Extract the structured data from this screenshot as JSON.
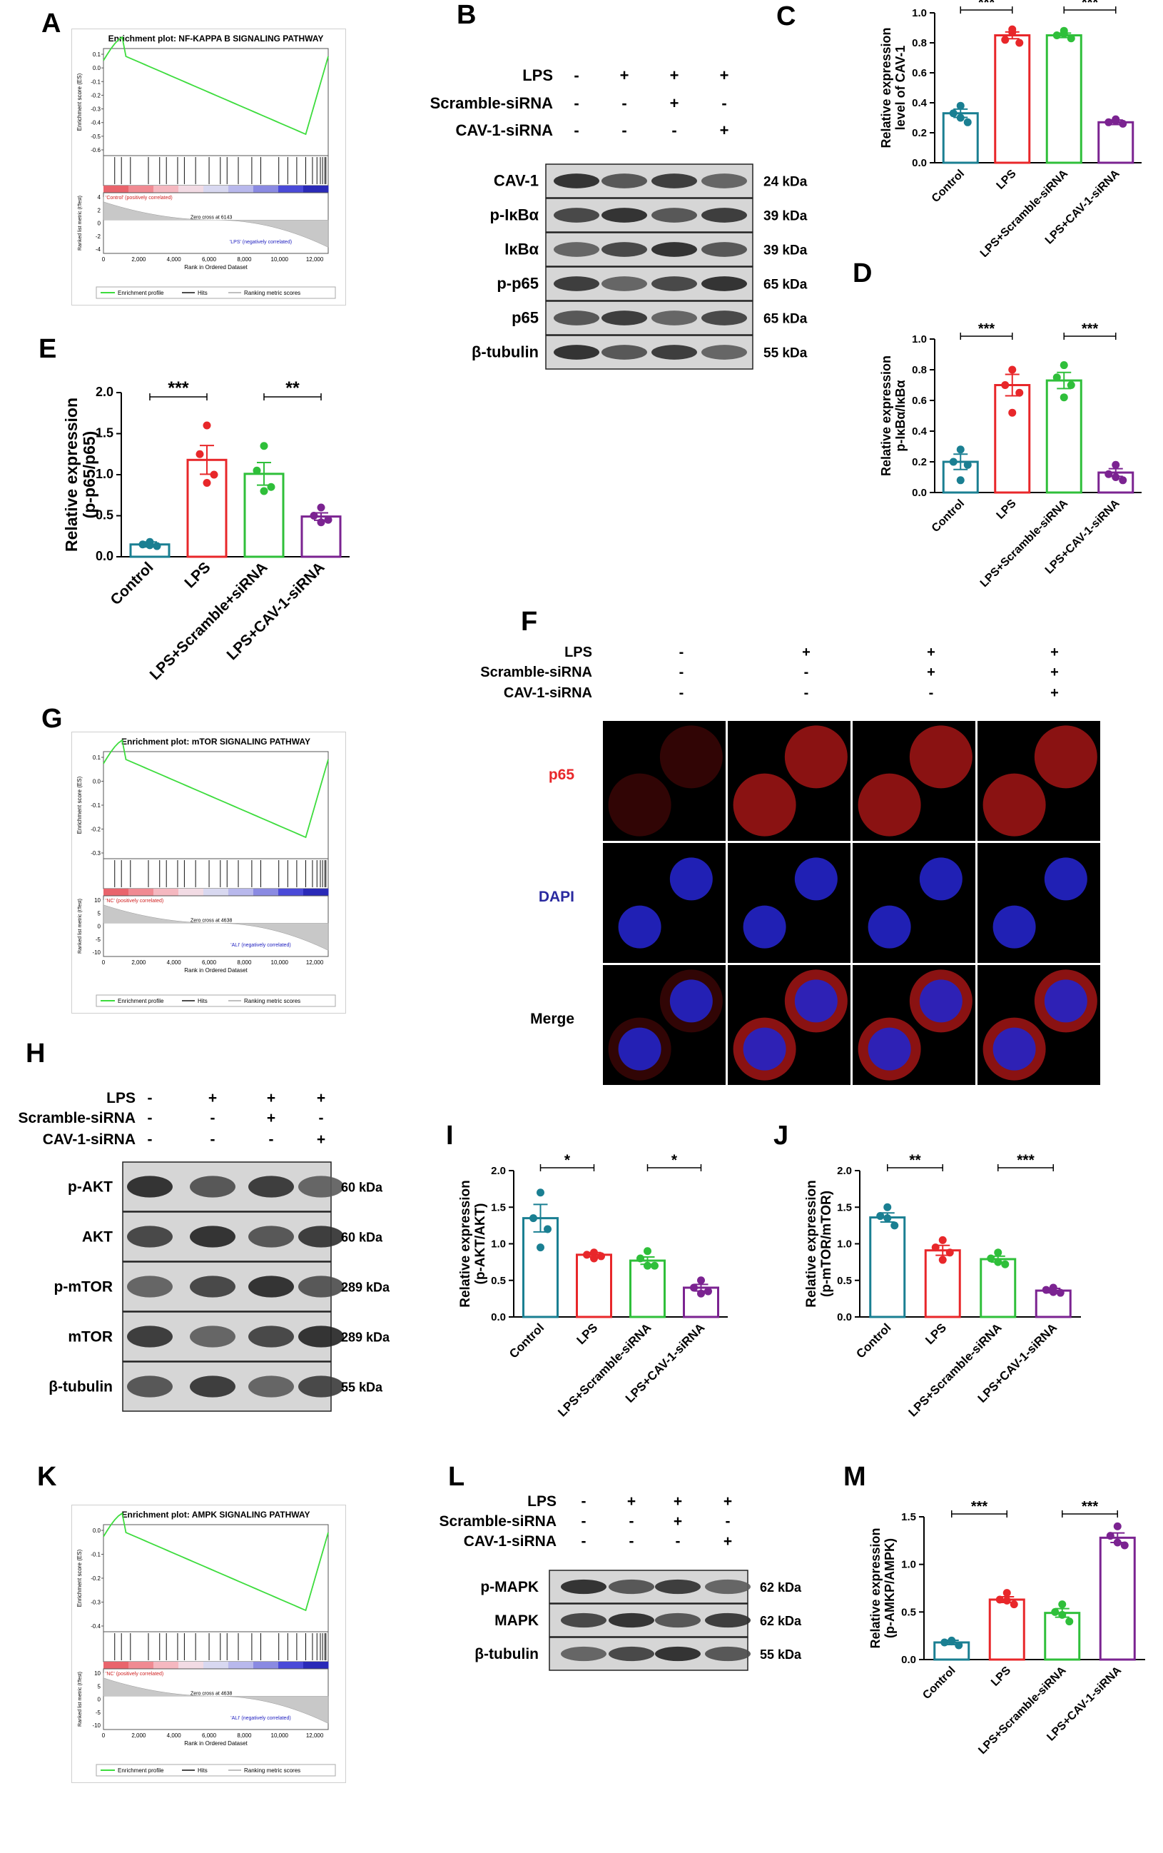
{
  "panel_letters": [
    "A",
    "B",
    "C",
    "D",
    "E",
    "F",
    "G",
    "H",
    "I",
    "J",
    "K",
    "L",
    "M"
  ],
  "conditions": {
    "lps": {
      "label": "LPS",
      "marks": [
        "-",
        "+",
        "+",
        "+"
      ]
    },
    "scramble": {
      "label": "Scramble-siRNA",
      "marks": [
        "-",
        "-",
        "+",
        "-"
      ]
    },
    "cav1": {
      "label": "CAV-1-siRNA",
      "marks": [
        "-",
        "-",
        "-",
        "+"
      ]
    },
    "scramble_f": {
      "label": "Scramble-siRNA",
      "marks": [
        "-",
        "-",
        "+",
        "+"
      ]
    },
    "cav1_f": {
      "label": "CAV-1-siRNA",
      "marks": [
        "-",
        "-",
        "-",
        "+"
      ]
    }
  },
  "group_labels": [
    "Control",
    "LPS",
    "LPS+Scramble-siRNA",
    "LPS+CAV-1-siRNA"
  ],
  "group_labels_E": [
    "Control",
    "LPS",
    "LPS+Scramble+siRNA",
    "LPS+CAV-1-siRNA"
  ],
  "colors": {
    "control": "#1a7f92",
    "lps": "#e8272a",
    "scramble": "#2fbf3a",
    "cav1": "#7b2391",
    "gsea_curve": "#3ddc3d"
  },
  "blots": {
    "B": [
      {
        "name": "CAV-1",
        "size": "24 kDa"
      },
      {
        "name": "p-IκBα",
        "size": "39 kDa"
      },
      {
        "name": "IκBα",
        "size": "39 kDa"
      },
      {
        "name": "p-p65",
        "size": "65 kDa"
      },
      {
        "name": "p65",
        "size": "65 kDa"
      },
      {
        "name": "β-tubulin",
        "size": "55 kDa"
      }
    ],
    "H": [
      {
        "name": "p-AKT",
        "size": "60 kDa"
      },
      {
        "name": "AKT",
        "size": "60 kDa"
      },
      {
        "name": "p-mTOR",
        "size": "289 kDa"
      },
      {
        "name": "mTOR",
        "size": "289 kDa"
      },
      {
        "name": "β-tubulin",
        "size": "55 kDa"
      }
    ],
    "L": [
      {
        "name": "p-MAPK",
        "size": "62 kDa"
      },
      {
        "name": "MAPK",
        "size": "62 kDa"
      },
      {
        "name": "β-tubulin",
        "size": "55 kDa"
      }
    ]
  },
  "if_panel": {
    "rows": [
      {
        "label": "p65",
        "color": "#e8272a"
      },
      {
        "label": "DAPI",
        "color": "#2a2aa0"
      },
      {
        "label": "Merge",
        "color": "#000000"
      }
    ]
  },
  "gsea": [
    {
      "panel": "A",
      "title": "Enrichment plot: NF-KAPPA B SIGNALING PATHWAY",
      "es_ticks": [
        "0.1",
        "0.0",
        "-0.1",
        "-0.2",
        "-0.3",
        "-0.4",
        "-0.5",
        "-0.6"
      ],
      "rank_ticks": [
        "4",
        "2",
        "0",
        "-2",
        "-4"
      ],
      "pos_label": "'Control' (positively correlated)",
      "neg_label": "'LPS' (negatively correlated)",
      "zero_cross": "Zero cross at 6143",
      "x_ticks": [
        "0",
        "2,000",
        "4,000",
        "6,000",
        "8,000",
        "10,000",
        "12,000"
      ],
      "xlabel": "Rank in Ordered Dataset",
      "ylabel_top": "Enrichment score (ES)",
      "ylabel_bottom": "Ranked list metric (tTest)",
      "legend": [
        "Enrichment profile",
        "Hits",
        "Ranking metric scores"
      ]
    },
    {
      "panel": "G",
      "title": "Enrichment plot: mTOR SIGNALING PATHWAY",
      "es_ticks": [
        "0.1",
        "0.0",
        "-0.1",
        "-0.2",
        "-0.3"
      ],
      "rank_ticks": [
        "10",
        "5",
        "0",
        "-5",
        "-10"
      ],
      "pos_label": "'NC' (positively correlated)",
      "neg_label": "'ALI' (negatively correlated)",
      "zero_cross": "Zero cross at 4638",
      "x_ticks": [
        "0",
        "2,000",
        "4,000",
        "6,000",
        "8,000",
        "10,000",
        "12,000"
      ],
      "xlabel": "Rank in Ordered Dataset",
      "ylabel_top": "Enrichment score (ES)",
      "ylabel_bottom": "Ranked list metric (tTest)",
      "legend": [
        "Enrichment profile",
        "Hits",
        "Ranking metric scores"
      ]
    },
    {
      "panel": "K",
      "title": "Enrichment plot: AMPK SIGNALING PATHWAY",
      "es_ticks": [
        "0.0",
        "-0.1",
        "-0.2",
        "-0.3",
        "-0.4"
      ],
      "rank_ticks": [
        "10",
        "5",
        "0",
        "-5",
        "-10"
      ],
      "pos_label": "'NC' (positively correlated)",
      "neg_label": "'ALI' (negatively correlated)",
      "zero_cross": "Zero cross at 4638",
      "x_ticks": [
        "0",
        "2,000",
        "4,000",
        "6,000",
        "8,000",
        "10,000",
        "12,000"
      ],
      "xlabel": "Rank in Ordered Dataset",
      "ylabel_top": "Enrichment score (ES)",
      "ylabel_bottom": "Ranked list metric (tTest)",
      "legend": [
        "Enrichment profile",
        "Hits",
        "Ranking metric scores"
      ]
    }
  ],
  "chart_data": [
    {
      "panel": "C",
      "type": "bar",
      "ylabel": "Relative expression level of CAV-1",
      "ylim": [
        0,
        1.0
      ],
      "yticks": [
        "0.0",
        "0.2",
        "0.4",
        "0.6",
        "0.8",
        "1.0"
      ],
      "values": [
        0.33,
        0.85,
        0.85,
        0.27
      ],
      "points": [
        [
          0.38,
          0.33,
          0.27,
          0.3
        ],
        [
          0.89,
          0.82,
          0.8,
          0.87
        ],
        [
          0.88,
          0.85,
          0.83,
          0.86
        ],
        [
          0.29,
          0.27,
          0.26,
          0.28
        ]
      ],
      "significance": [
        {
          "from": 0,
          "to": 1,
          "label": "***"
        },
        {
          "from": 2,
          "to": 3,
          "label": "***"
        }
      ]
    },
    {
      "panel": "D",
      "type": "bar",
      "ylabel": "Relative expression p-IκBα/IκBα",
      "ylim": [
        0,
        1.0
      ],
      "yticks": [
        "0.0",
        "0.2",
        "0.4",
        "0.6",
        "0.8",
        "1.0"
      ],
      "values": [
        0.2,
        0.7,
        0.73,
        0.13
      ],
      "points": [
        [
          0.28,
          0.2,
          0.18,
          0.08
        ],
        [
          0.8,
          0.7,
          0.65,
          0.52
        ],
        [
          0.83,
          0.75,
          0.7,
          0.62
        ],
        [
          0.18,
          0.12,
          0.08,
          0.1
        ]
      ],
      "significance": [
        {
          "from": 0,
          "to": 1,
          "label": "***"
        },
        {
          "from": 2,
          "to": 3,
          "label": "***"
        }
      ]
    },
    {
      "panel": "E",
      "type": "bar",
      "ylabel": "Relative expression (p-p65/p65)",
      "ylim": [
        0,
        2.0
      ],
      "yticks": [
        "0.0",
        "0.5",
        "1.0",
        "1.5",
        "2.0"
      ],
      "values": [
        0.15,
        1.18,
        1.01,
        0.49
      ],
      "points": [
        [
          0.18,
          0.15,
          0.13,
          0.14
        ],
        [
          1.6,
          1.25,
          1.0,
          0.9
        ],
        [
          1.35,
          1.05,
          0.85,
          0.8
        ],
        [
          0.6,
          0.5,
          0.45,
          0.42
        ]
      ],
      "significance": [
        {
          "from": 0,
          "to": 1,
          "label": "***"
        },
        {
          "from": 2,
          "to": 3,
          "label": "**"
        }
      ]
    },
    {
      "panel": "I",
      "type": "bar",
      "ylabel": "Relative expression (p-AKT/AKT)",
      "ylim": [
        0,
        2.0
      ],
      "yticks": [
        "0.0",
        "0.5",
        "1.0",
        "1.5",
        "2.0"
      ],
      "values": [
        1.35,
        0.85,
        0.77,
        0.4
      ],
      "points": [
        [
          1.7,
          1.35,
          1.2,
          0.95
        ],
        [
          0.88,
          0.85,
          0.83,
          0.8
        ],
        [
          0.9,
          0.8,
          0.7,
          0.7
        ],
        [
          0.5,
          0.4,
          0.35,
          0.32
        ]
      ],
      "significance": [
        {
          "from": 0,
          "to": 1,
          "label": "*"
        },
        {
          "from": 2,
          "to": 3,
          "label": "*"
        }
      ]
    },
    {
      "panel": "J",
      "type": "bar",
      "ylabel": "Relative expression (p-mTOR/mTOR)",
      "ylim": [
        0,
        2.0
      ],
      "yticks": [
        "0.0",
        "0.5",
        "1.0",
        "1.5",
        "2.0"
      ],
      "values": [
        1.36,
        0.91,
        0.79,
        0.36
      ],
      "points": [
        [
          1.5,
          1.38,
          1.25,
          1.35
        ],
        [
          1.05,
          0.95,
          0.88,
          0.78
        ],
        [
          0.88,
          0.8,
          0.72,
          0.75
        ],
        [
          0.4,
          0.37,
          0.33,
          0.34
        ]
      ],
      "significance": [
        {
          "from": 0,
          "to": 1,
          "label": "**"
        },
        {
          "from": 2,
          "to": 3,
          "label": "***"
        }
      ]
    },
    {
      "panel": "M",
      "type": "bar",
      "ylabel": "Relative expression (p-AMKP/AMPK)",
      "ylim": [
        0,
        1.5
      ],
      "yticks": [
        "0.0",
        "0.5",
        "1.0",
        "1.5"
      ],
      "values": [
        0.18,
        0.63,
        0.49,
        1.28
      ],
      "points": [
        [
          0.2,
          0.18,
          0.15,
          0.19
        ],
        [
          0.7,
          0.63,
          0.58,
          0.62
        ],
        [
          0.58,
          0.5,
          0.4,
          0.47
        ],
        [
          1.4,
          1.3,
          1.2,
          1.23
        ]
      ],
      "significance": [
        {
          "from": 0,
          "to": 1,
          "label": "***"
        },
        {
          "from": 2,
          "to": 3,
          "label": "***"
        }
      ]
    }
  ]
}
